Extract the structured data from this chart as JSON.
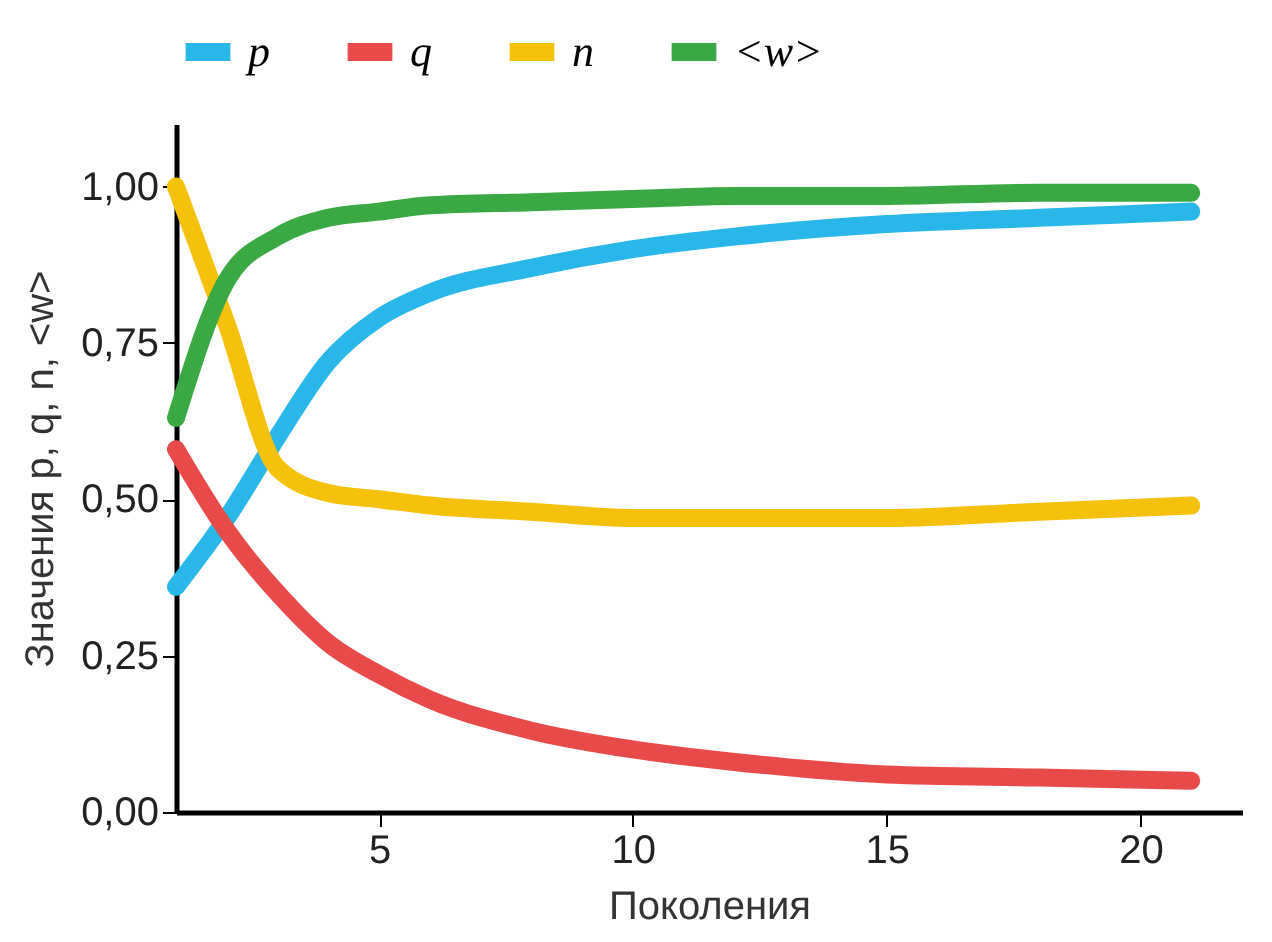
{
  "chart_data": {
    "type": "line",
    "xlabel": "Поколения",
    "ylabel": "Значения p, q, n, <w>",
    "x": [
      1,
      2,
      3,
      4,
      5,
      6,
      8,
      10,
      12,
      15,
      18,
      21
    ],
    "series": [
      {
        "name": "p",
        "color": "#29b6e8",
        "values": [
          0.36,
          0.47,
          0.6,
          0.72,
          0.79,
          0.83,
          0.87,
          0.9,
          0.92,
          0.94,
          0.95,
          0.96
        ]
      },
      {
        "name": "q",
        "color": "#e84a4a",
        "values": [
          0.58,
          0.45,
          0.35,
          0.27,
          0.22,
          0.18,
          0.13,
          0.1,
          0.08,
          0.06,
          0.055,
          0.05
        ]
      },
      {
        "name": "n",
        "color": "#f5c10a",
        "values": [
          1.0,
          0.78,
          0.55,
          0.51,
          0.5,
          0.49,
          0.48,
          0.47,
          0.47,
          0.47,
          0.48,
          0.49
        ]
      },
      {
        "name": "<w>",
        "color": "#3aa843",
        "values": [
          0.63,
          0.85,
          0.92,
          0.95,
          0.96,
          0.97,
          0.975,
          0.98,
          0.985,
          0.985,
          0.99,
          0.99
        ]
      }
    ],
    "xlim": [
      1,
      22
    ],
    "ylim": [
      0,
      1.1
    ],
    "xticks": [
      5,
      10,
      15,
      20
    ],
    "yticks": [
      {
        "value": 0,
        "label": "0,00"
      },
      {
        "value": 0.25,
        "label": "0,25"
      },
      {
        "value": 0.5,
        "label": "0,50"
      },
      {
        "value": 0.75,
        "label": "0,75"
      },
      {
        "value": 1,
        "label": "1,00"
      }
    ],
    "grid": false,
    "legend": "top",
    "marker": "none",
    "line_style": "solid"
  }
}
